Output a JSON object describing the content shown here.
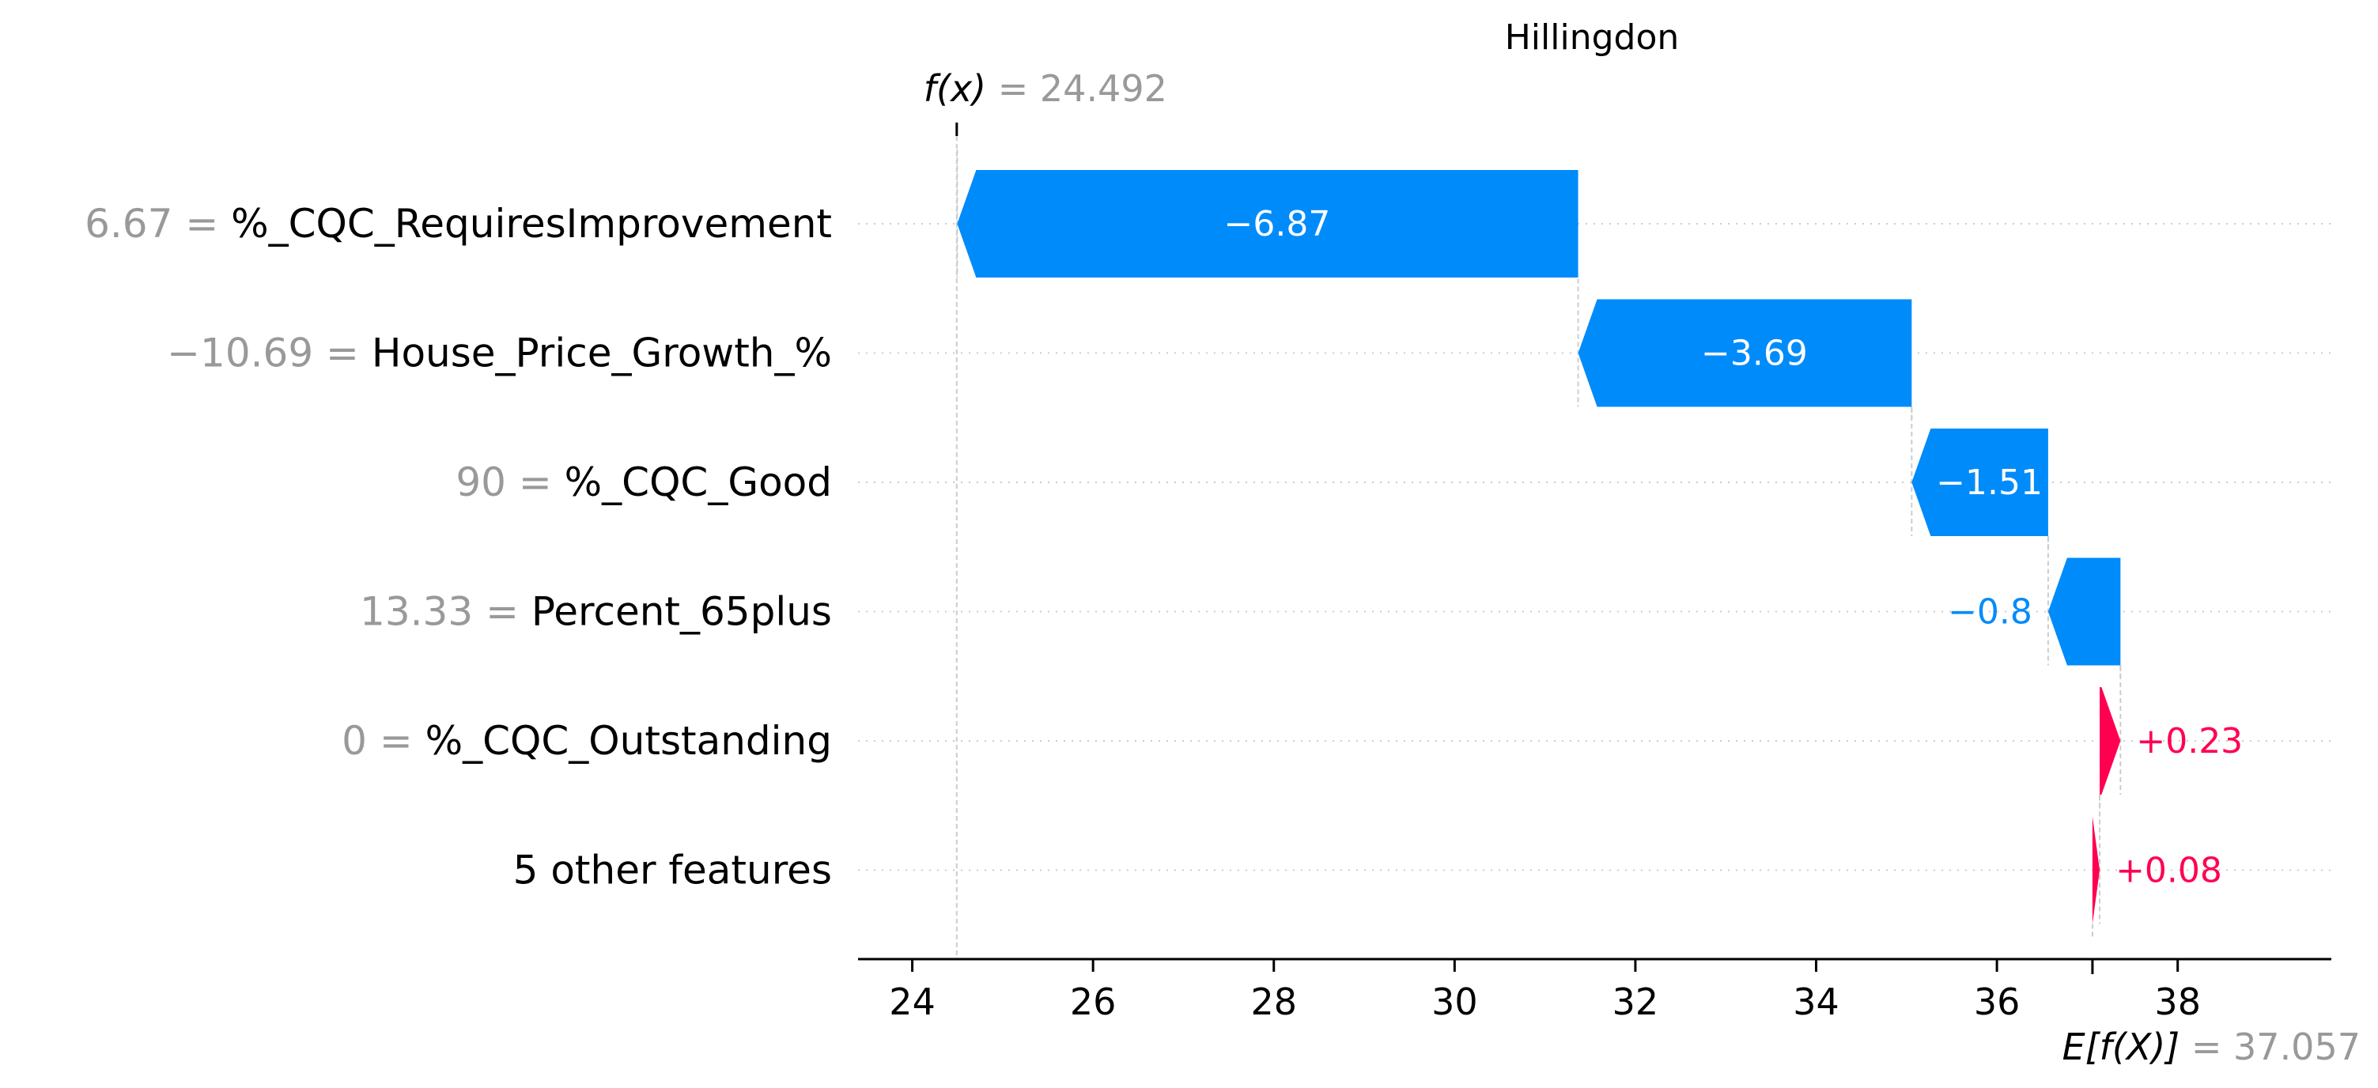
{
  "chart_data": {
    "type": "bar",
    "subtype": "waterfall",
    "title": "Hillingdon",
    "fx_label": "f(x)",
    "fx_value": "24.492",
    "base_label": "E[f(X)]",
    "base_value": "37.057",
    "base": 37.057,
    "final": 24.492,
    "xlim": [
      23.4,
      39.7
    ],
    "ticks": [
      "24",
      "26",
      "28",
      "30",
      "32",
      "34",
      "36",
      "38"
    ],
    "features": [
      {
        "value_text": "6.67",
        "name": "%_CQC_RequiresImprovement",
        "contribution": -6.87,
        "label": "−6.87"
      },
      {
        "value_text": "−10.69",
        "name": "House_Price_Growth_%",
        "contribution": -3.69,
        "label": "−3.69"
      },
      {
        "value_text": "90",
        "name": "%_CQC_Good",
        "contribution": -1.51,
        "label": "−1.51"
      },
      {
        "value_text": "13.33",
        "name": "Percent_65plus",
        "contribution": -0.8,
        "label": "−0.8"
      },
      {
        "value_text": "0",
        "name": "%_CQC_Outstanding",
        "contribution": 0.23,
        "label": "+0.23"
      },
      {
        "value_text": "",
        "name": "5 other features",
        "contribution": 0.08,
        "label": "+0.08"
      }
    ],
    "colors": {
      "negative": "#008bfb",
      "positive": "#ff0051",
      "axis": "#000000",
      "muted": "#999999",
      "grid": "#cccccc"
    }
  }
}
